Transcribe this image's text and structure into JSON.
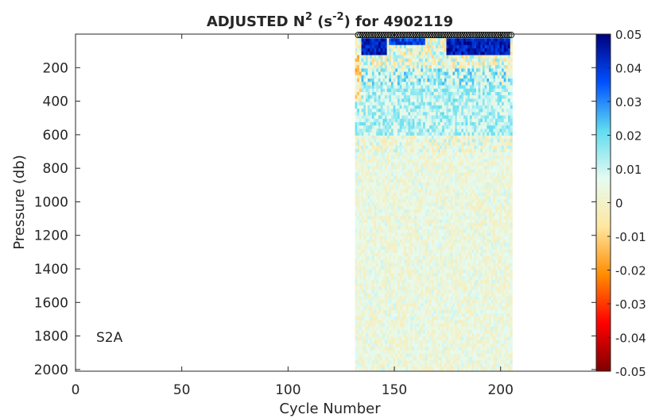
{
  "chart_data": {
    "type": "heatmap",
    "title": "ADJUSTED N",
    "title_sup1": "2",
    "title_mid": " (s",
    "title_sup2": "-2",
    "title_end": ") for 4902119",
    "xlabel": "Cycle Number",
    "ylabel": "Pressure (db)",
    "annotation": "S2A",
    "xlim": [
      0,
      245
    ],
    "ylim": [
      2010,
      0
    ],
    "x_ticks": [
      0,
      50,
      100,
      150,
      200
    ],
    "x_tick_labels": [
      "0",
      "50",
      "100",
      "150",
      "200"
    ],
    "y_ticks": [
      200,
      400,
      600,
      800,
      1000,
      1200,
      1400,
      1600,
      1800,
      2000
    ],
    "y_tick_labels": [
      "200",
      "400",
      "600",
      "800",
      "1000",
      "1200",
      "1400",
      "1600",
      "1800",
      "2000"
    ],
    "y_reversed": true,
    "colorbar": {
      "min": -0.05,
      "max": 0.05,
      "ticks": [
        0.05,
        0.04,
        0.03,
        0.02,
        0.01,
        0,
        -0.01,
        -0.02,
        -0.03,
        -0.04,
        -0.05
      ],
      "tick_labels": [
        "0.05",
        "0.04",
        "0.03",
        "0.02",
        "0.01",
        "0",
        "-0.01",
        "-0.02",
        "-0.03",
        "-0.04",
        "-0.05"
      ],
      "colormap": [
        "#7f0000",
        "#ff0000",
        "#ff8c00",
        "#ffe7a0",
        "#e6fbf1",
        "#5fdcf0",
        "#0050ff",
        "#00007f"
      ]
    },
    "data_extent": {
      "cycle_range": [
        132,
        205
      ],
      "pressure_range": [
        5,
        2005
      ],
      "marker_row_pressure": 5,
      "marker_cycles": [
        133,
        205
      ]
    },
    "features": [
      {
        "cycles": [
          135,
          146
        ],
        "pressure": [
          20,
          110
        ],
        "value": 0.05
      },
      {
        "cycles": [
          148,
          164
        ],
        "pressure": [
          20,
          60
        ],
        "value": 0.045
      },
      {
        "cycles": [
          175,
          204
        ],
        "pressure": [
          20,
          120
        ],
        "value": 0.05
      },
      {
        "cycles": [
          132,
          134
        ],
        "pressure": [
          100,
          400
        ],
        "value": -0.005
      },
      {
        "cycles": [
          132,
          205
        ],
        "pressure": [
          200,
          600
        ],
        "value": 0.012
      },
      {
        "cycles": [
          132,
          205
        ],
        "pressure": [
          600,
          2005
        ],
        "value": 0.004
      }
    ],
    "grid": false
  }
}
